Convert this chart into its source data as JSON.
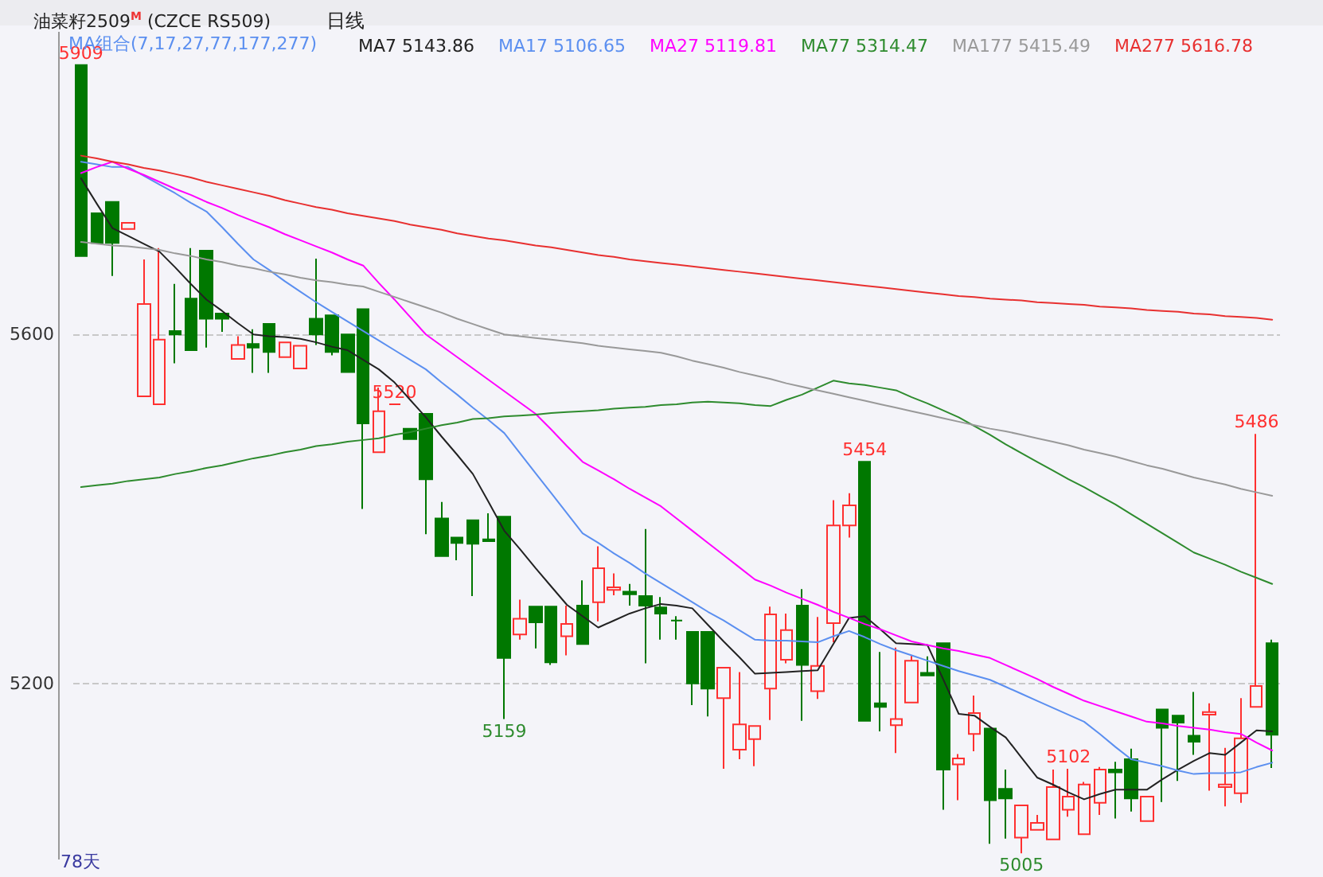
{
  "chart_data": {
    "type": "candlestick",
    "title": "油菜籽2509$^{M}$ (CZCE RS509)",
    "subtitle": "日线",
    "legend_title": "MA组合(7,17,27,77,177,277)",
    "categories": [
      null,
      null,
      null,
      null,
      null,
      null,
      null,
      null,
      null,
      null,
      null,
      null,
      null,
      null,
      null,
      null,
      null,
      null,
      null,
      null,
      null,
      null,
      null,
      null,
      null,
      null,
      null,
      null,
      null,
      null,
      null,
      null,
      null,
      null,
      null,
      null,
      null,
      null,
      null,
      null,
      null,
      null,
      null,
      null,
      null,
      null,
      null,
      null,
      null,
      null,
      null,
      null,
      null,
      null,
      null,
      null,
      null,
      null,
      null,
      null,
      null,
      null,
      null,
      null,
      null,
      null,
      null,
      null,
      null,
      null,
      null,
      null,
      null,
      null,
      null,
      null,
      null
    ],
    "ohlc": [
      [
        5909,
        5909,
        5690,
        5690
      ],
      [
        5739,
        5739,
        5705,
        5705
      ],
      [
        5752,
        5752,
        5667,
        5705
      ],
      [
        5721,
        5728,
        5721,
        5728
      ],
      [
        5529,
        5686,
        5529,
        5635
      ],
      [
        5520,
        5699,
        5520,
        5594
      ],
      [
        5604,
        5658,
        5567,
        5600
      ],
      [
        5641,
        5699,
        5582,
        5582
      ],
      [
        5696,
        5696,
        5585,
        5618
      ],
      [
        5624,
        5624,
        5603,
        5618
      ],
      [
        5572,
        5598,
        5572,
        5588
      ],
      [
        5589,
        5606,
        5556,
        5585
      ],
      [
        5612,
        5612,
        5556,
        5580
      ],
      [
        5574,
        5591,
        5574,
        5591
      ],
      [
        5561,
        5587,
        5561,
        5587
      ],
      [
        5618,
        5687,
        5588,
        5600
      ],
      [
        5622,
        5622,
        5576,
        5580
      ],
      [
        5600,
        5600,
        5557,
        5557
      ],
      [
        5629,
        5629,
        5400,
        5498
      ],
      [
        5465,
        5539,
        5465,
        5512
      ],
      [
        5520,
        5520,
        5520,
        5520
      ],
      [
        5492,
        5492,
        5480,
        5480
      ],
      [
        5509,
        5509,
        5371,
        5434
      ],
      [
        5389,
        5408,
        5346,
        5346
      ],
      [
        5367,
        5367,
        5341,
        5361
      ],
      [
        5387,
        5387,
        5300,
        5360
      ],
      [
        5365,
        5395,
        5363,
        5363
      ],
      [
        5391,
        5391,
        5159,
        5229
      ],
      [
        5256,
        5296,
        5250,
        5274
      ],
      [
        5288,
        5288,
        5240,
        5270
      ],
      [
        5288,
        5288,
        5221,
        5224
      ],
      [
        5254,
        5289,
        5232,
        5268
      ],
      [
        5289,
        5318,
        5245,
        5245
      ],
      [
        5293,
        5357,
        5271,
        5332
      ],
      [
        5307,
        5326,
        5301,
        5310
      ],
      [
        5305,
        5314,
        5289,
        5302
      ],
      [
        5300,
        5377,
        5223,
        5289
      ],
      [
        5287,
        5299,
        5250,
        5280
      ],
      [
        5272,
        5277,
        5250,
        5272
      ],
      [
        5259,
        5259,
        5175,
        5200
      ],
      [
        5259,
        5259,
        5162,
        5194
      ],
      [
        5183,
        5218,
        5102,
        5218
      ],
      [
        5124,
        5213,
        5113,
        5153
      ],
      [
        5136,
        5151,
        5105,
        5151
      ],
      [
        5194,
        5288,
        5158,
        5279
      ],
      [
        5227,
        5280,
        5223,
        5261
      ],
      [
        5289,
        5308,
        5157,
        5221
      ],
      [
        5191,
        5276,
        5182,
        5220
      ],
      [
        5269,
        5410,
        5247,
        5381
      ],
      [
        5381,
        5418,
        5367,
        5404
      ],
      [
        5454,
        5454,
        5157,
        5157
      ],
      [
        5177,
        5236,
        5145,
        5173
      ],
      [
        5152,
        5241,
        5120,
        5159
      ],
      [
        5178,
        5232,
        5178,
        5226
      ],
      [
        5212,
        5231,
        5209,
        5209
      ],
      [
        5246,
        5246,
        5055,
        5101
      ],
      [
        5107,
        5119,
        5066,
        5114
      ],
      [
        5142,
        5186,
        5122,
        5166
      ],
      [
        5148,
        5148,
        5016,
        5066
      ],
      [
        5079,
        5101,
        5022,
        5068
      ],
      [
        5023,
        5060,
        5005,
        5060
      ],
      [
        5032,
        5049,
        5032,
        5040
      ],
      [
        5021,
        5101,
        5021,
        5081
      ],
      [
        5055,
        5102,
        5047,
        5070
      ],
      [
        5027,
        5087,
        5027,
        5084
      ],
      [
        5063,
        5104,
        5049,
        5101
      ],
      [
        5101,
        5110,
        5045,
        5098
      ],
      [
        5113,
        5125,
        5053,
        5068
      ],
      [
        5042,
        5070,
        5042,
        5070
      ],
      [
        5170,
        5170,
        5064,
        5149
      ],
      [
        5163,
        5163,
        5088,
        5155
      ],
      [
        5140,
        5190,
        5118,
        5133
      ],
      [
        5164,
        5177,
        5077,
        5167
      ],
      [
        5081,
        5126,
        5059,
        5084
      ],
      [
        5074,
        5183,
        5063,
        5137
      ],
      [
        5173,
        5486,
        5173,
        5197
      ],
      [
        5246,
        5250,
        5103,
        5141
      ]
    ],
    "series": [
      {
        "type": "line",
        "name": "MA7 5143.86",
        "color": "#222222",
        "values": [
          5779,
          5750,
          5722,
          5713,
          5704,
          5695,
          5677,
          5658,
          5640,
          5627,
          5613,
          5600,
          5598,
          5597,
          5595,
          5591,
          5586,
          5582,
          5571,
          5560,
          5545,
          5525,
          5505,
          5483,
          5462,
          5440,
          5408,
          5375,
          5354,
          5332,
          5311,
          5290,
          5277,
          5264,
          5272,
          5280,
          5286,
          5291,
          5289,
          5286,
          5267,
          5248,
          5230,
          5211,
          5212,
          5213,
          5214,
          5215,
          5245,
          5275,
          5277,
          5262,
          5246,
          5245,
          5244,
          5205,
          5165,
          5163,
          5150,
          5138,
          5115,
          5092,
          5084,
          5075,
          5067,
          5073,
          5078,
          5078,
          5078,
          5090,
          5101,
          5111,
          5120,
          5118,
          5132,
          5146,
          5145
        ]
      },
      {
        "type": "line",
        "name": "MA17 5106.65",
        "color": "#5b8ff0",
        "values": [
          5798,
          5795,
          5792,
          5792,
          5782,
          5772,
          5762,
          5751,
          5741,
          5723,
          5704,
          5686,
          5674,
          5661,
          5649,
          5637,
          5626,
          5615,
          5604,
          5593,
          5582,
          5571,
          5560,
          5545,
          5531,
          5516,
          5502,
          5487,
          5464,
          5441,
          5418,
          5395,
          5372,
          5361,
          5349,
          5338,
          5326,
          5315,
          5304,
          5293,
          5282,
          5272,
          5261,
          5250,
          5249,
          5249,
          5248,
          5247,
          5254,
          5260,
          5253,
          5245,
          5238,
          5232,
          5226,
          5220,
          5214,
          5209,
          5204,
          5196,
          5188,
          5180,
          5172,
          5164,
          5156,
          5142,
          5127,
          5113,
          5109,
          5105,
          5100,
          5096,
          5097,
          5097,
          5098,
          5104,
          5109
        ]
      },
      {
        "type": "line",
        "name": "MA27 5119.81",
        "color": "#ff00ff",
        "values": [
          5785,
          5792,
          5798,
          5790,
          5783,
          5775,
          5767,
          5760,
          5752,
          5745,
          5737,
          5730,
          5723,
          5715,
          5708,
          5701,
          5694,
          5686,
          5679,
          5659,
          5640,
          5620,
          5600,
          5587,
          5574,
          5561,
          5548,
          5535,
          5522,
          5509,
          5491,
          5472,
          5454,
          5444,
          5434,
          5423,
          5413,
          5403,
          5389,
          5375,
          5361,
          5347,
          5333,
          5319,
          5312,
          5304,
          5297,
          5290,
          5282,
          5275,
          5268,
          5262,
          5255,
          5248,
          5244,
          5240,
          5237,
          5233,
          5229,
          5221,
          5213,
          5205,
          5196,
          5188,
          5180,
          5174,
          5168,
          5162,
          5156,
          5154,
          5151,
          5149,
          5147,
          5144,
          5142,
          5132,
          5123
        ]
      },
      {
        "type": "line",
        "name": "MA77 5314.47",
        "color": "#2e8b2e",
        "values": [
          5425,
          5427,
          5429,
          5432,
          5434,
          5436,
          5440,
          5443,
          5447,
          5450,
          5454,
          5458,
          5461,
          5465,
          5468,
          5472,
          5474,
          5477,
          5479,
          5481,
          5485,
          5488,
          5492,
          5496,
          5499,
          5503,
          5504,
          5506,
          5507,
          5508,
          5510,
          5511,
          5512,
          5513,
          5515,
          5516,
          5517,
          5519,
          5520,
          5522,
          5523,
          5522,
          5521,
          5519,
          5518,
          5525,
          5531,
          5539,
          5547,
          5544,
          5542,
          5539,
          5536,
          5528,
          5521,
          5513,
          5505,
          5495,
          5485,
          5474,
          5464,
          5454,
          5444,
          5434,
          5425,
          5415,
          5405,
          5394,
          5383,
          5372,
          5361,
          5350,
          5343,
          5336,
          5328,
          5321,
          5314
        ]
      },
      {
        "type": "line",
        "name": "MA177 5415.49",
        "color": "#999999",
        "values": [
          5706,
          5704,
          5702,
          5701,
          5699,
          5697,
          5693,
          5690,
          5686,
          5683,
          5679,
          5676,
          5672,
          5669,
          5665,
          5662,
          5660,
          5657,
          5655,
          5649,
          5643,
          5637,
          5631,
          5625,
          5618,
          5612,
          5606,
          5600,
          5598,
          5596,
          5594,
          5592,
          5590,
          5587,
          5585,
          5583,
          5581,
          5579,
          5575,
          5570,
          5566,
          5562,
          5557,
          5553,
          5549,
          5544,
          5540,
          5536,
          5532,
          5528,
          5524,
          5520,
          5516,
          5512,
          5508,
          5504,
          5500,
          5496,
          5492,
          5489,
          5485,
          5481,
          5477,
          5473,
          5468,
          5464,
          5460,
          5455,
          5450,
          5446,
          5441,
          5436,
          5432,
          5428,
          5423,
          5419,
          5415
        ]
      },
      {
        "type": "line",
        "name": "MA277 5616.78",
        "color": "#e83030",
        "values": [
          5805,
          5802,
          5798,
          5795,
          5791,
          5788,
          5784,
          5780,
          5775,
          5771,
          5767,
          5763,
          5759,
          5754,
          5750,
          5746,
          5743,
          5739,
          5736,
          5733,
          5730,
          5726,
          5723,
          5720,
          5716,
          5713,
          5710,
          5708,
          5705,
          5702,
          5700,
          5697,
          5694,
          5691,
          5689,
          5686,
          5684,
          5682,
          5680,
          5678,
          5676,
          5674,
          5672,
          5670,
          5668,
          5666,
          5664,
          5662,
          5660,
          5658,
          5656,
          5654,
          5652,
          5650,
          5648,
          5646,
          5644,
          5643,
          5641,
          5640,
          5639,
          5637,
          5636,
          5635,
          5634,
          5632,
          5631,
          5630,
          5628,
          5627,
          5626,
          5624,
          5623,
          5621,
          5620,
          5619,
          5617
        ]
      }
    ],
    "ylim": [
      4998,
      5947
    ],
    "yticks": [
      5200,
      5600
    ],
    "grid": "y",
    "legend": "top",
    "marker": "none",
    "annotations": [
      {
        "text": "5909",
        "y": 5909
      },
      {
        "text": "5520",
        "y": 5520
      },
      {
        "text": "5159",
        "y": 5159
      },
      {
        "text": "5454",
        "y": 5454
      },
      {
        "text": "5102",
        "y": 5102
      },
      {
        "text": "5005",
        "y": 5005
      },
      {
        "text": "5486",
        "y": 5486
      },
      "78天"
    ]
  }
}
